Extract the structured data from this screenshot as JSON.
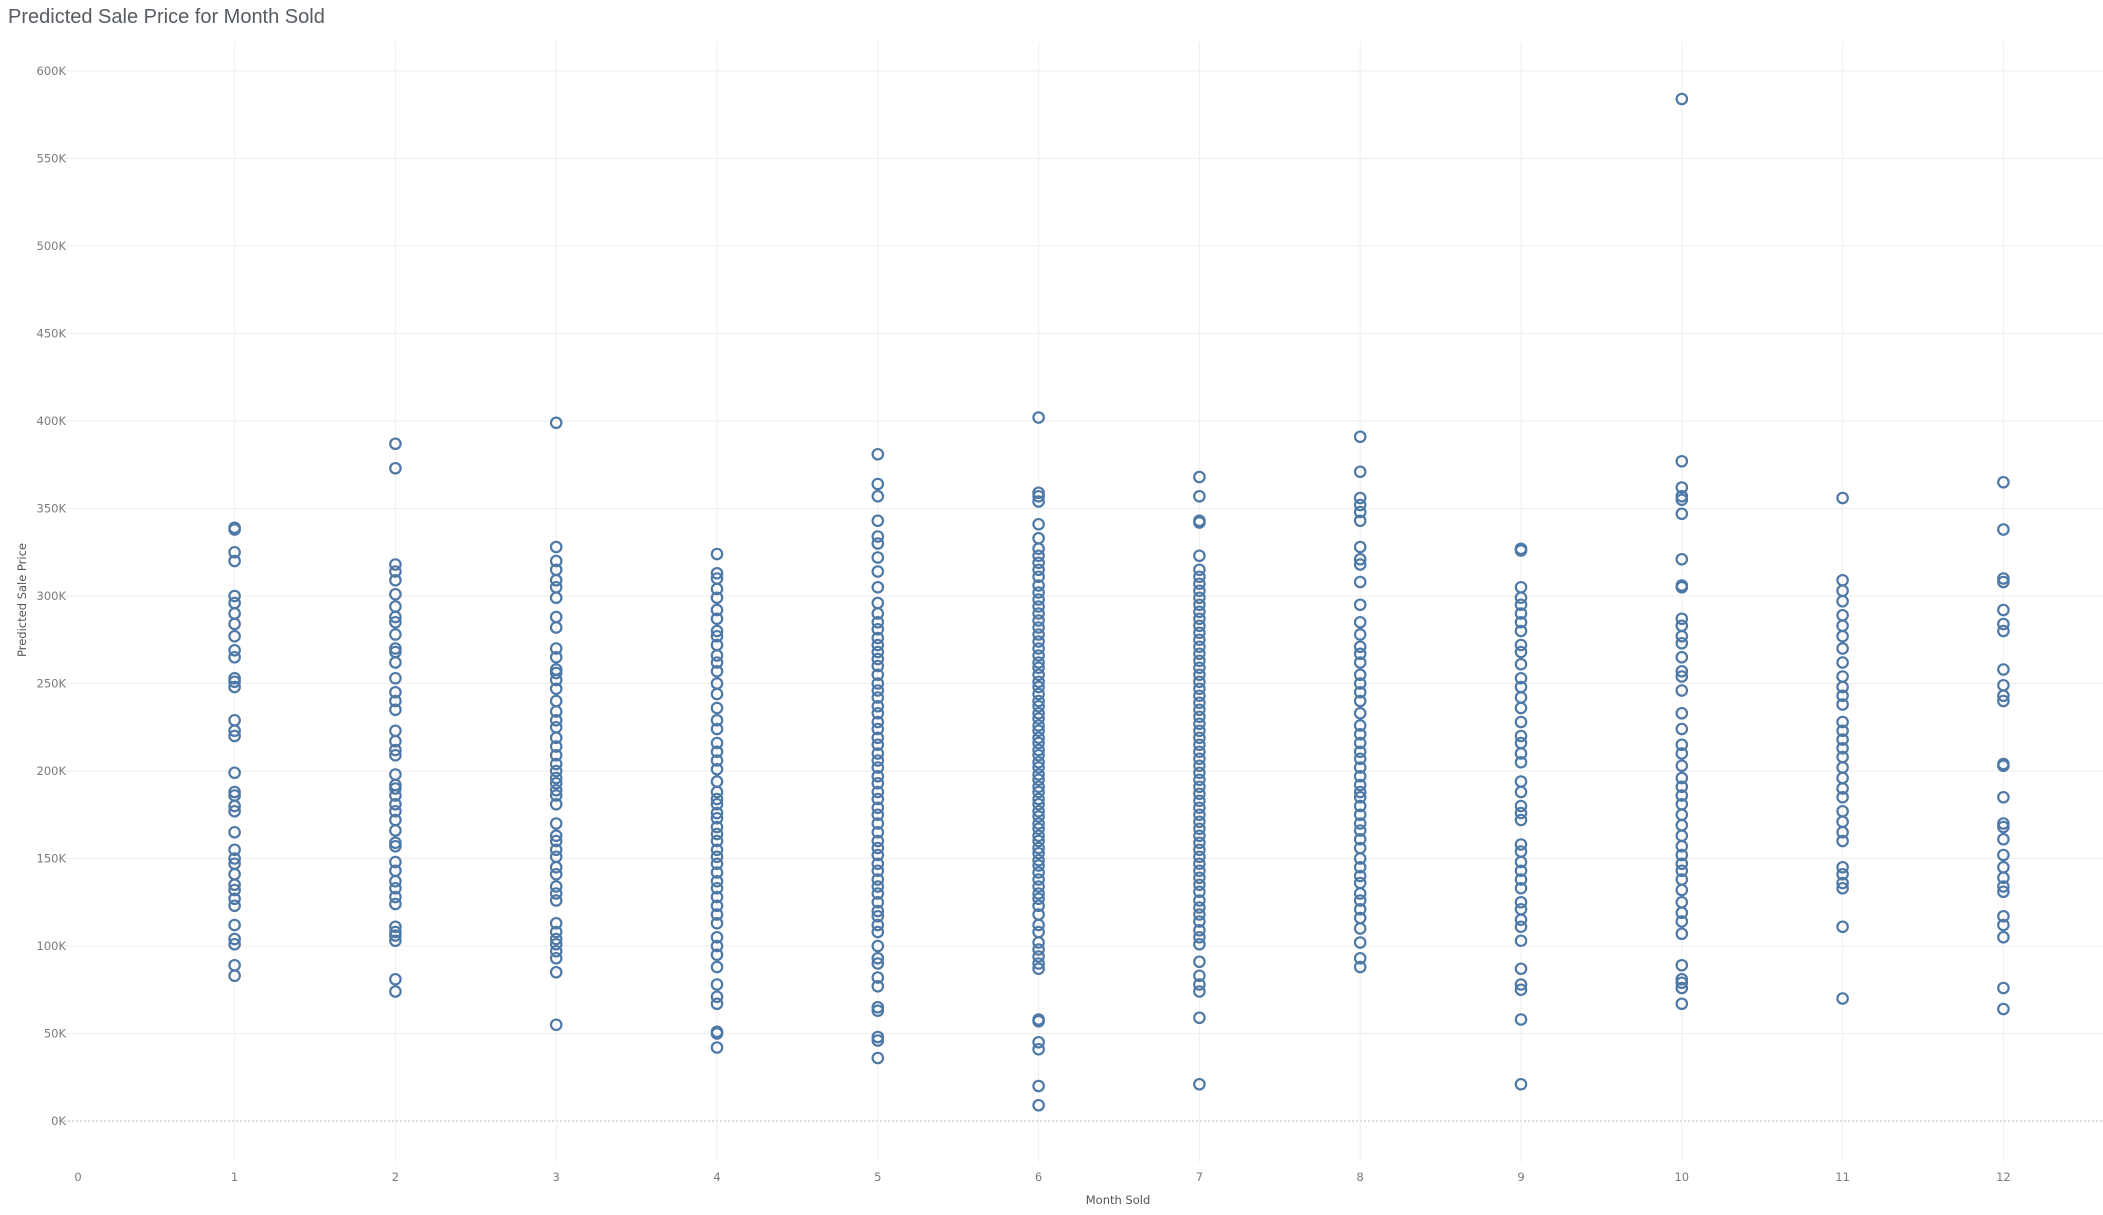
{
  "chart_data": {
    "type": "scatter",
    "title": "Predicted Sale Price for Month Sold",
    "xlabel": "Month Sold",
    "ylabel": "Predicted Sale Price",
    "xlim": [
      0,
      12.6
    ],
    "ylim": [
      0,
      610000
    ],
    "x_ticks": [
      0,
      1,
      2,
      3,
      4,
      5,
      6,
      7,
      8,
      9,
      10,
      11,
      12
    ],
    "y_ticks": [
      0,
      50000,
      100000,
      150000,
      200000,
      250000,
      300000,
      350000,
      400000,
      450000,
      500000,
      550000,
      600000
    ],
    "y_tick_labels": [
      "0K",
      "50K",
      "100K",
      "150K",
      "200K",
      "250K",
      "300K",
      "350K",
      "400K",
      "450K",
      "500K",
      "550K",
      "600K"
    ],
    "grid": true,
    "marker": "hollow-circle",
    "color": "#4e79a7",
    "points_by_month": {
      "1": [
        83000,
        89000,
        101000,
        104000,
        112000,
        123000,
        127000,
        132000,
        135000,
        141000,
        147000,
        150000,
        155000,
        165000,
        177000,
        180000,
        186000,
        188000,
        199000,
        220000,
        223000,
        229000,
        248000,
        251000,
        253000,
        265000,
        269000,
        277000,
        284000,
        290000,
        296000,
        300000,
        320000,
        325000,
        338000,
        339000
      ],
      "2": [
        74000,
        81000,
        103000,
        106000,
        108000,
        111000,
        124000,
        128000,
        133000,
        137000,
        143000,
        148000,
        157000,
        159000,
        166000,
        172000,
        177000,
        181000,
        186000,
        190000,
        192000,
        198000,
        209000,
        212000,
        217000,
        223000,
        235000,
        240000,
        245000,
        253000,
        262000,
        268000,
        270000,
        278000,
        285000,
        288000,
        294000,
        301000,
        309000,
        314000,
        318000,
        373000,
        387000
      ],
      "3": [
        55000,
        85000,
        93000,
        97000,
        101000,
        104000,
        108000,
        113000,
        126000,
        130000,
        134000,
        141000,
        145000,
        151000,
        155000,
        160000,
        163000,
        170000,
        181000,
        186000,
        189000,
        193000,
        196000,
        200000,
        204000,
        209000,
        214000,
        219000,
        225000,
        229000,
        234000,
        240000,
        247000,
        252000,
        256000,
        258000,
        265000,
        270000,
        282000,
        288000,
        299000,
        305000,
        309000,
        315000,
        320000,
        328000,
        399000
      ],
      "4": [
        42000,
        50000,
        51000,
        67000,
        71000,
        78000,
        88000,
        95000,
        100000,
        105000,
        113000,
        118000,
        123000,
        128000,
        133000,
        137000,
        142000,
        147000,
        151000,
        155000,
        160000,
        164000,
        168000,
        173000,
        176000,
        181000,
        184000,
        188000,
        194000,
        201000,
        206000,
        211000,
        216000,
        224000,
        229000,
        236000,
        244000,
        250000,
        257000,
        262000,
        266000,
        272000,
        277000,
        280000,
        287000,
        292000,
        299000,
        304000,
        310000,
        313000,
        324000
      ],
      "5": [
        36000,
        46000,
        48000,
        63000,
        65000,
        77000,
        82000,
        90000,
        93000,
        100000,
        108000,
        112000,
        117000,
        120000,
        125000,
        130000,
        134000,
        138000,
        143000,
        147000,
        152000,
        156000,
        160000,
        165000,
        170000,
        175000,
        179000,
        184000,
        188000,
        193000,
        197000,
        202000,
        206000,
        210000,
        215000,
        219000,
        224000,
        228000,
        233000,
        237000,
        242000,
        246000,
        250000,
        255000,
        260000,
        264000,
        268000,
        272000,
        276000,
        281000,
        285000,
        290000,
        296000,
        305000,
        314000,
        322000,
        330000,
        334000,
        343000,
        357000,
        364000,
        381000
      ],
      "6": [
        9000,
        20000,
        41000,
        45000,
        57000,
        58000,
        87000,
        90000,
        94000,
        98000,
        102000,
        108000,
        112000,
        118000,
        123000,
        127000,
        130000,
        134000,
        138000,
        142000,
        146000,
        149000,
        153000,
        156000,
        160000,
        163000,
        167000,
        170000,
        174000,
        177000,
        181000,
        184000,
        188000,
        191000,
        195000,
        198000,
        202000,
        205000,
        209000,
        212000,
        216000,
        219000,
        223000,
        226000,
        230000,
        233000,
        237000,
        240000,
        244000,
        248000,
        251000,
        255000,
        259000,
        262000,
        266000,
        270000,
        274000,
        278000,
        282000,
        286000,
        290000,
        294000,
        298000,
        302000,
        306000,
        311000,
        315000,
        319000,
        323000,
        327000,
        333000,
        341000,
        354000,
        357000,
        359000,
        402000
      ],
      "7": [
        21000,
        59000,
        74000,
        78000,
        83000,
        91000,
        101000,
        105000,
        109000,
        114000,
        118000,
        122000,
        126000,
        131000,
        135000,
        139000,
        143000,
        147000,
        151000,
        155000,
        159000,
        163000,
        167000,
        171000,
        175000,
        179000,
        183000,
        187000,
        191000,
        195000,
        199000,
        203000,
        207000,
        211000,
        215000,
        219000,
        223000,
        227000,
        231000,
        235000,
        239000,
        243000,
        247000,
        251000,
        255000,
        259000,
        263000,
        267000,
        271000,
        275000,
        279000,
        283000,
        287000,
        291000,
        295000,
        299000,
        303000,
        307000,
        311000,
        315000,
        323000,
        342000,
        343000,
        357000,
        368000
      ],
      "8": [
        88000,
        93000,
        102000,
        110000,
        116000,
        121000,
        126000,
        130000,
        136000,
        140000,
        145000,
        150000,
        156000,
        161000,
        166000,
        170000,
        175000,
        180000,
        185000,
        188000,
        192000,
        197000,
        202000,
        207000,
        211000,
        216000,
        221000,
        226000,
        233000,
        240000,
        245000,
        250000,
        255000,
        262000,
        267000,
        271000,
        278000,
        285000,
        295000,
        308000,
        318000,
        321000,
        328000,
        343000,
        348000,
        352000,
        356000,
        371000,
        391000
      ],
      "9": [
        21000,
        58000,
        75000,
        78000,
        87000,
        103000,
        111000,
        115000,
        121000,
        125000,
        133000,
        138000,
        143000,
        148000,
        154000,
        158000,
        172000,
        176000,
        180000,
        188000,
        194000,
        205000,
        210000,
        216000,
        220000,
        228000,
        236000,
        242000,
        248000,
        253000,
        261000,
        268000,
        272000,
        280000,
        285000,
        290000,
        295000,
        299000,
        305000,
        326000,
        327000
      ],
      "10": [
        67000,
        76000,
        79000,
        81000,
        89000,
        107000,
        114000,
        119000,
        125000,
        132000,
        138000,
        143000,
        147000,
        152000,
        157000,
        163000,
        169000,
        175000,
        181000,
        186000,
        191000,
        196000,
        203000,
        210000,
        215000,
        224000,
        233000,
        246000,
        254000,
        257000,
        265000,
        273000,
        277000,
        283000,
        287000,
        305000,
        306000,
        321000,
        347000,
        355000,
        357000,
        362000,
        377000,
        584000
      ],
      "11": [
        70000,
        111000,
        133000,
        136000,
        141000,
        145000,
        160000,
        165000,
        171000,
        177000,
        185000,
        190000,
        196000,
        202000,
        208000,
        213000,
        218000,
        223000,
        228000,
        238000,
        243000,
        248000,
        254000,
        262000,
        270000,
        277000,
        283000,
        289000,
        297000,
        303000,
        309000,
        356000
      ],
      "12": [
        64000,
        76000,
        105000,
        112000,
        117000,
        131000,
        134000,
        139000,
        145000,
        152000,
        161000,
        168000,
        170000,
        185000,
        203000,
        204000,
        240000,
        243000,
        249000,
        258000,
        280000,
        284000,
        292000,
        308000,
        310000,
        338000,
        365000
      ]
    }
  }
}
